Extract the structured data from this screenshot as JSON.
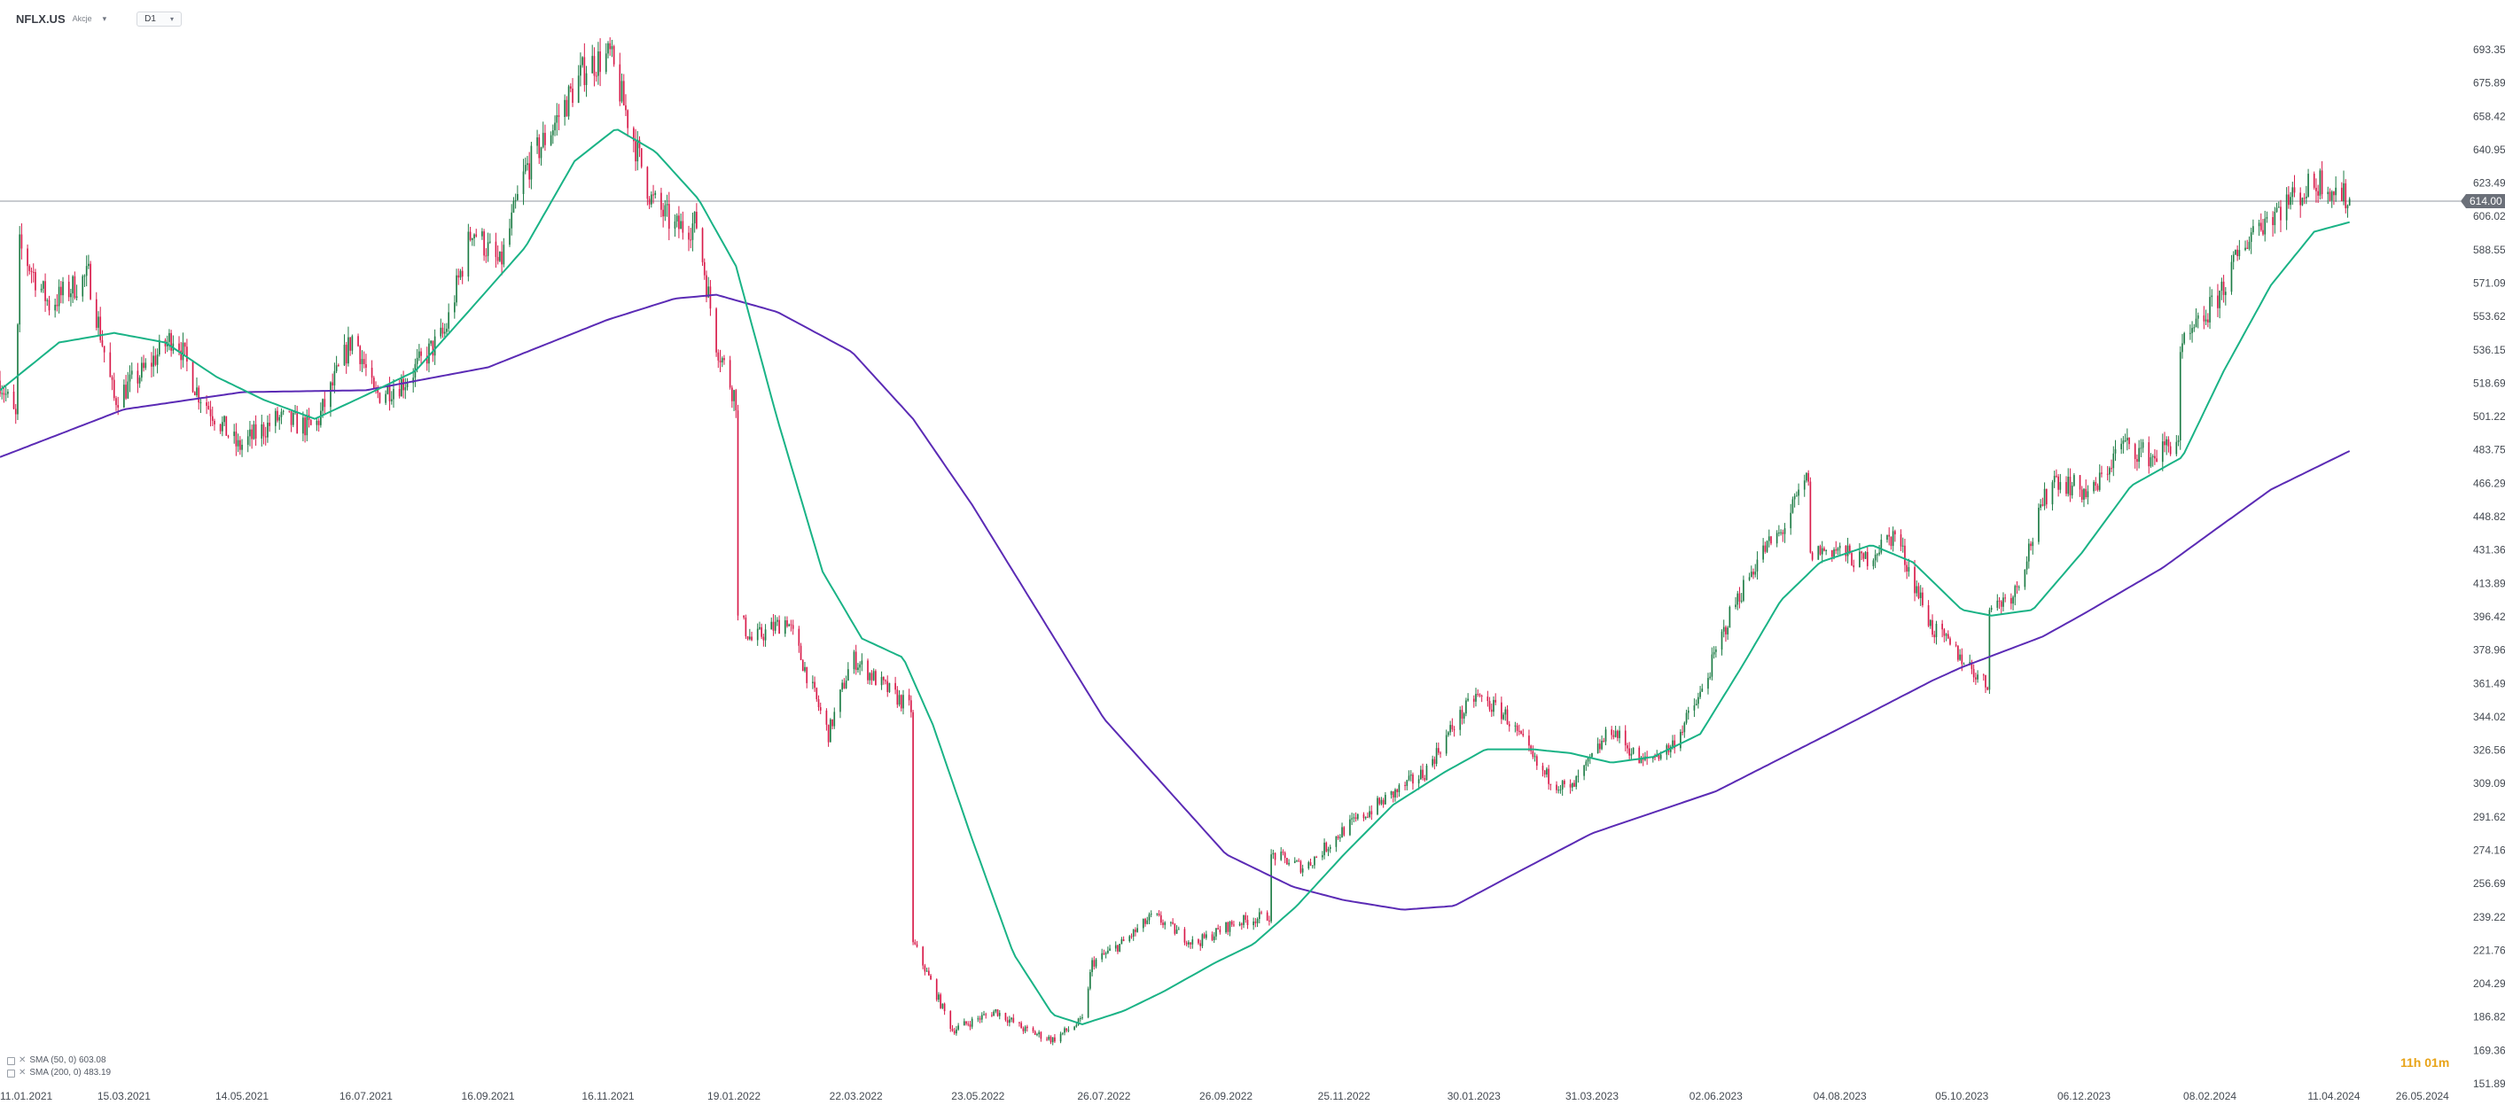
{
  "header": {
    "symbol": "NFLX.US",
    "asset_type": "Akcje",
    "dropdown_glyph": "▾",
    "interval": "D1",
    "interval_caret": "▾"
  },
  "indicators": [
    {
      "label": "SMA (50, 0) 603.08",
      "color": "#1ab386"
    },
    {
      "label": "SMA (200, 0) 483.19",
      "color": "#5b2bb5"
    }
  ],
  "countdown": "11h 01m",
  "colors": {
    "up": "#1e7d46",
    "down": "#d81b4a",
    "sma50": "#1ab386",
    "sma200": "#5b2bb5",
    "price_line": "#a9adb3",
    "price_tag_bg": "#6b7079",
    "axis_text": "#444a52"
  },
  "chart_data": {
    "type": "candlestick",
    "symbol": "NFLX.US",
    "timeframe": "D1",
    "current_price": 614.0,
    "current_price_label": "614.00",
    "y_axis": {
      "min": 151.89,
      "max": 693.35,
      "ticks": [
        "693.35",
        "675.89",
        "658.42",
        "640.95",
        "623.49",
        "606.02",
        "588.55",
        "571.09",
        "553.62",
        "536.15",
        "518.69",
        "501.22",
        "483.75",
        "466.29",
        "448.82",
        "431.36",
        "413.89",
        "396.42",
        "378.96",
        "361.49",
        "344.02",
        "326.56",
        "309.09",
        "291.62",
        "274.16",
        "256.69",
        "239.22",
        "221.76",
        "204.29",
        "186.82",
        "169.36",
        "151.89"
      ]
    },
    "x_axis": {
      "start": "2021-01-11",
      "end": "2024-06-14",
      "ticks": [
        "11.01.2021",
        "15.03.2021",
        "14.05.2021",
        "16.07.2021",
        "16.09.2021",
        "16.11.2021",
        "19.01.2022",
        "22.03.2022",
        "23.05.2022",
        "26.07.2022",
        "26.09.2022",
        "25.11.2022",
        "30.01.2023",
        "31.03.2023",
        "02.06.2023",
        "04.08.2023",
        "05.10.2023",
        "06.12.2023",
        "08.02.2024",
        "11.04.2024",
        "26.05.2024"
      ]
    },
    "last_candle_date": "2024-04-19",
    "price_anchors": [
      [
        "2021-01-11",
        520
      ],
      [
        "2021-01-19",
        500
      ],
      [
        "2021-01-21",
        590
      ],
      [
        "2021-02-05",
        560
      ],
      [
        "2021-02-25",
        575
      ],
      [
        "2021-03-10",
        510
      ],
      [
        "2021-03-25",
        525
      ],
      [
        "2021-04-10",
        545
      ],
      [
        "2021-04-21",
        515
      ],
      [
        "2021-05-12",
        485
      ],
      [
        "2021-06-01",
        500
      ],
      [
        "2021-06-20",
        495
      ],
      [
        "2021-07-10",
        545
      ],
      [
        "2021-07-20",
        512
      ],
      [
        "2021-08-05",
        520
      ],
      [
        "2021-08-25",
        545
      ],
      [
        "2021-09-08",
        600
      ],
      [
        "2021-09-22",
        580
      ],
      [
        "2021-10-05",
        630
      ],
      [
        "2021-10-20",
        655
      ],
      [
        "2021-11-05",
        685
      ],
      [
        "2021-11-17",
        690
      ],
      [
        "2021-11-28",
        650
      ],
      [
        "2021-12-08",
        615
      ],
      [
        "2021-12-20",
        600
      ],
      [
        "2021-12-31",
        602
      ],
      [
        "2022-01-10",
        540
      ],
      [
        "2022-01-20",
        510
      ],
      [
        "2022-01-21",
        397
      ],
      [
        "2022-01-28",
        384
      ],
      [
        "2022-02-15",
        395
      ],
      [
        "2022-03-08",
        335
      ],
      [
        "2022-03-20",
        375
      ],
      [
        "2022-04-05",
        360
      ],
      [
        "2022-04-19",
        348
      ],
      [
        "2022-04-20",
        226
      ],
      [
        "2022-05-10",
        180
      ],
      [
        "2022-06-01",
        190
      ],
      [
        "2022-06-16",
        180
      ],
      [
        "2022-06-30",
        175
      ],
      [
        "2022-07-15",
        185
      ],
      [
        "2022-07-20",
        215
      ],
      [
        "2022-08-05",
        226
      ],
      [
        "2022-08-20",
        240
      ],
      [
        "2022-09-10",
        225
      ],
      [
        "2022-09-30",
        236
      ],
      [
        "2022-10-18",
        240
      ],
      [
        "2022-10-19",
        272
      ],
      [
        "2022-11-05",
        265
      ],
      [
        "2022-11-25",
        285
      ],
      [
        "2022-12-15",
        300
      ],
      [
        "2023-01-05",
        315
      ],
      [
        "2023-01-20",
        340
      ],
      [
        "2023-01-31",
        355
      ],
      [
        "2023-02-15",
        345
      ],
      [
        "2023-03-05",
        315
      ],
      [
        "2023-03-20",
        305
      ],
      [
        "2023-04-10",
        338
      ],
      [
        "2023-04-25",
        320
      ],
      [
        "2023-05-10",
        328
      ],
      [
        "2023-05-25",
        355
      ],
      [
        "2023-06-10",
        400
      ],
      [
        "2023-06-25",
        430
      ],
      [
        "2023-07-05",
        440
      ],
      [
        "2023-07-19",
        470
      ],
      [
        "2023-07-20",
        430
      ],
      [
        "2023-08-01",
        432
      ],
      [
        "2023-08-15",
        425
      ],
      [
        "2023-09-01",
        440
      ],
      [
        "2023-09-20",
        390
      ],
      [
        "2023-10-05",
        375
      ],
      [
        "2023-10-18",
        360
      ],
      [
        "2023-10-19",
        400
      ],
      [
        "2023-11-01",
        410
      ],
      [
        "2023-11-20",
        470
      ],
      [
        "2023-12-10",
        460
      ],
      [
        "2023-12-25",
        487
      ],
      [
        "2024-01-10",
        480
      ],
      [
        "2024-01-23",
        490
      ],
      [
        "2024-01-24",
        535
      ],
      [
        "2024-02-10",
        560
      ],
      [
        "2024-03-01",
        600
      ],
      [
        "2024-03-20",
        615
      ],
      [
        "2024-04-05",
        625
      ],
      [
        "2024-04-19",
        614
      ]
    ],
    "sma50_anchors": [
      [
        "2021-01-11",
        515
      ],
      [
        "2021-02-10",
        540
      ],
      [
        "2021-03-10",
        545
      ],
      [
        "2021-04-05",
        540
      ],
      [
        "2021-05-01",
        522
      ],
      [
        "2021-05-25",
        510
      ],
      [
        "2021-06-20",
        500
      ],
      [
        "2021-07-15",
        512
      ],
      [
        "2021-08-10",
        525
      ],
      [
        "2021-09-05",
        555
      ],
      [
        "2021-10-05",
        590
      ],
      [
        "2021-10-30",
        635
      ],
      [
        "2021-11-20",
        652
      ],
      [
        "2021-12-10",
        640
      ],
      [
        "2022-01-01",
        615
      ],
      [
        "2022-01-20",
        580
      ],
      [
        "2022-02-10",
        500
      ],
      [
        "2022-03-05",
        420
      ],
      [
        "2022-03-25",
        385
      ],
      [
        "2022-04-15",
        375
      ],
      [
        "2022-04-30",
        340
      ],
      [
        "2022-05-20",
        280
      ],
      [
        "2022-06-10",
        220
      ],
      [
        "2022-06-30",
        188
      ],
      [
        "2022-07-15",
        183
      ],
      [
        "2022-08-05",
        190
      ],
      [
        "2022-08-25",
        200
      ],
      [
        "2022-09-20",
        215
      ],
      [
        "2022-10-10",
        225
      ],
      [
        "2022-11-01",
        245
      ],
      [
        "2022-11-25",
        272
      ],
      [
        "2022-12-20",
        298
      ],
      [
        "2023-01-15",
        315
      ],
      [
        "2023-02-05",
        327
      ],
      [
        "2023-03-01",
        327
      ],
      [
        "2023-03-20",
        325
      ],
      [
        "2023-04-10",
        320
      ],
      [
        "2023-05-01",
        323
      ],
      [
        "2023-05-25",
        335
      ],
      [
        "2023-06-15",
        370
      ],
      [
        "2023-07-05",
        405
      ],
      [
        "2023-07-25",
        425
      ],
      [
        "2023-08-20",
        434
      ],
      [
        "2023-09-10",
        425
      ],
      [
        "2023-10-05",
        400
      ],
      [
        "2023-10-20",
        397
      ],
      [
        "2023-11-10",
        400
      ],
      [
        "2023-12-05",
        430
      ],
      [
        "2023-12-30",
        465
      ],
      [
        "2024-01-25",
        480
      ],
      [
        "2024-02-15",
        525
      ],
      [
        "2024-03-10",
        570
      ],
      [
        "2024-04-01",
        598
      ],
      [
        "2024-04-19",
        603
      ]
    ],
    "sma200_anchors": [
      [
        "2021-01-11",
        480
      ],
      [
        "2021-03-15",
        505
      ],
      [
        "2021-05-14",
        514
      ],
      [
        "2021-07-16",
        515
      ],
      [
        "2021-09-16",
        527
      ],
      [
        "2021-11-16",
        552
      ],
      [
        "2021-12-20",
        563
      ],
      [
        "2022-01-10",
        565
      ],
      [
        "2022-02-10",
        556
      ],
      [
        "2022-03-20",
        535
      ],
      [
        "2022-04-20",
        500
      ],
      [
        "2022-05-20",
        455
      ],
      [
        "2022-07-26",
        343
      ],
      [
        "2022-09-26",
        272
      ],
      [
        "2022-10-30",
        255
      ],
      [
        "2022-11-25",
        248
      ],
      [
        "2022-12-25",
        243
      ],
      [
        "2023-01-20",
        245
      ],
      [
        "2023-02-20",
        262
      ],
      [
        "2023-03-31",
        283
      ],
      [
        "2023-06-02",
        305
      ],
      [
        "2023-08-04",
        338
      ],
      [
        "2023-09-20",
        363
      ],
      [
        "2023-10-05",
        370
      ],
      [
        "2023-11-15",
        386
      ],
      [
        "2023-12-06",
        398
      ],
      [
        "2024-01-15",
        422
      ],
      [
        "2024-02-08",
        440
      ],
      [
        "2024-03-10",
        463
      ],
      [
        "2024-04-19",
        483.19
      ]
    ]
  }
}
